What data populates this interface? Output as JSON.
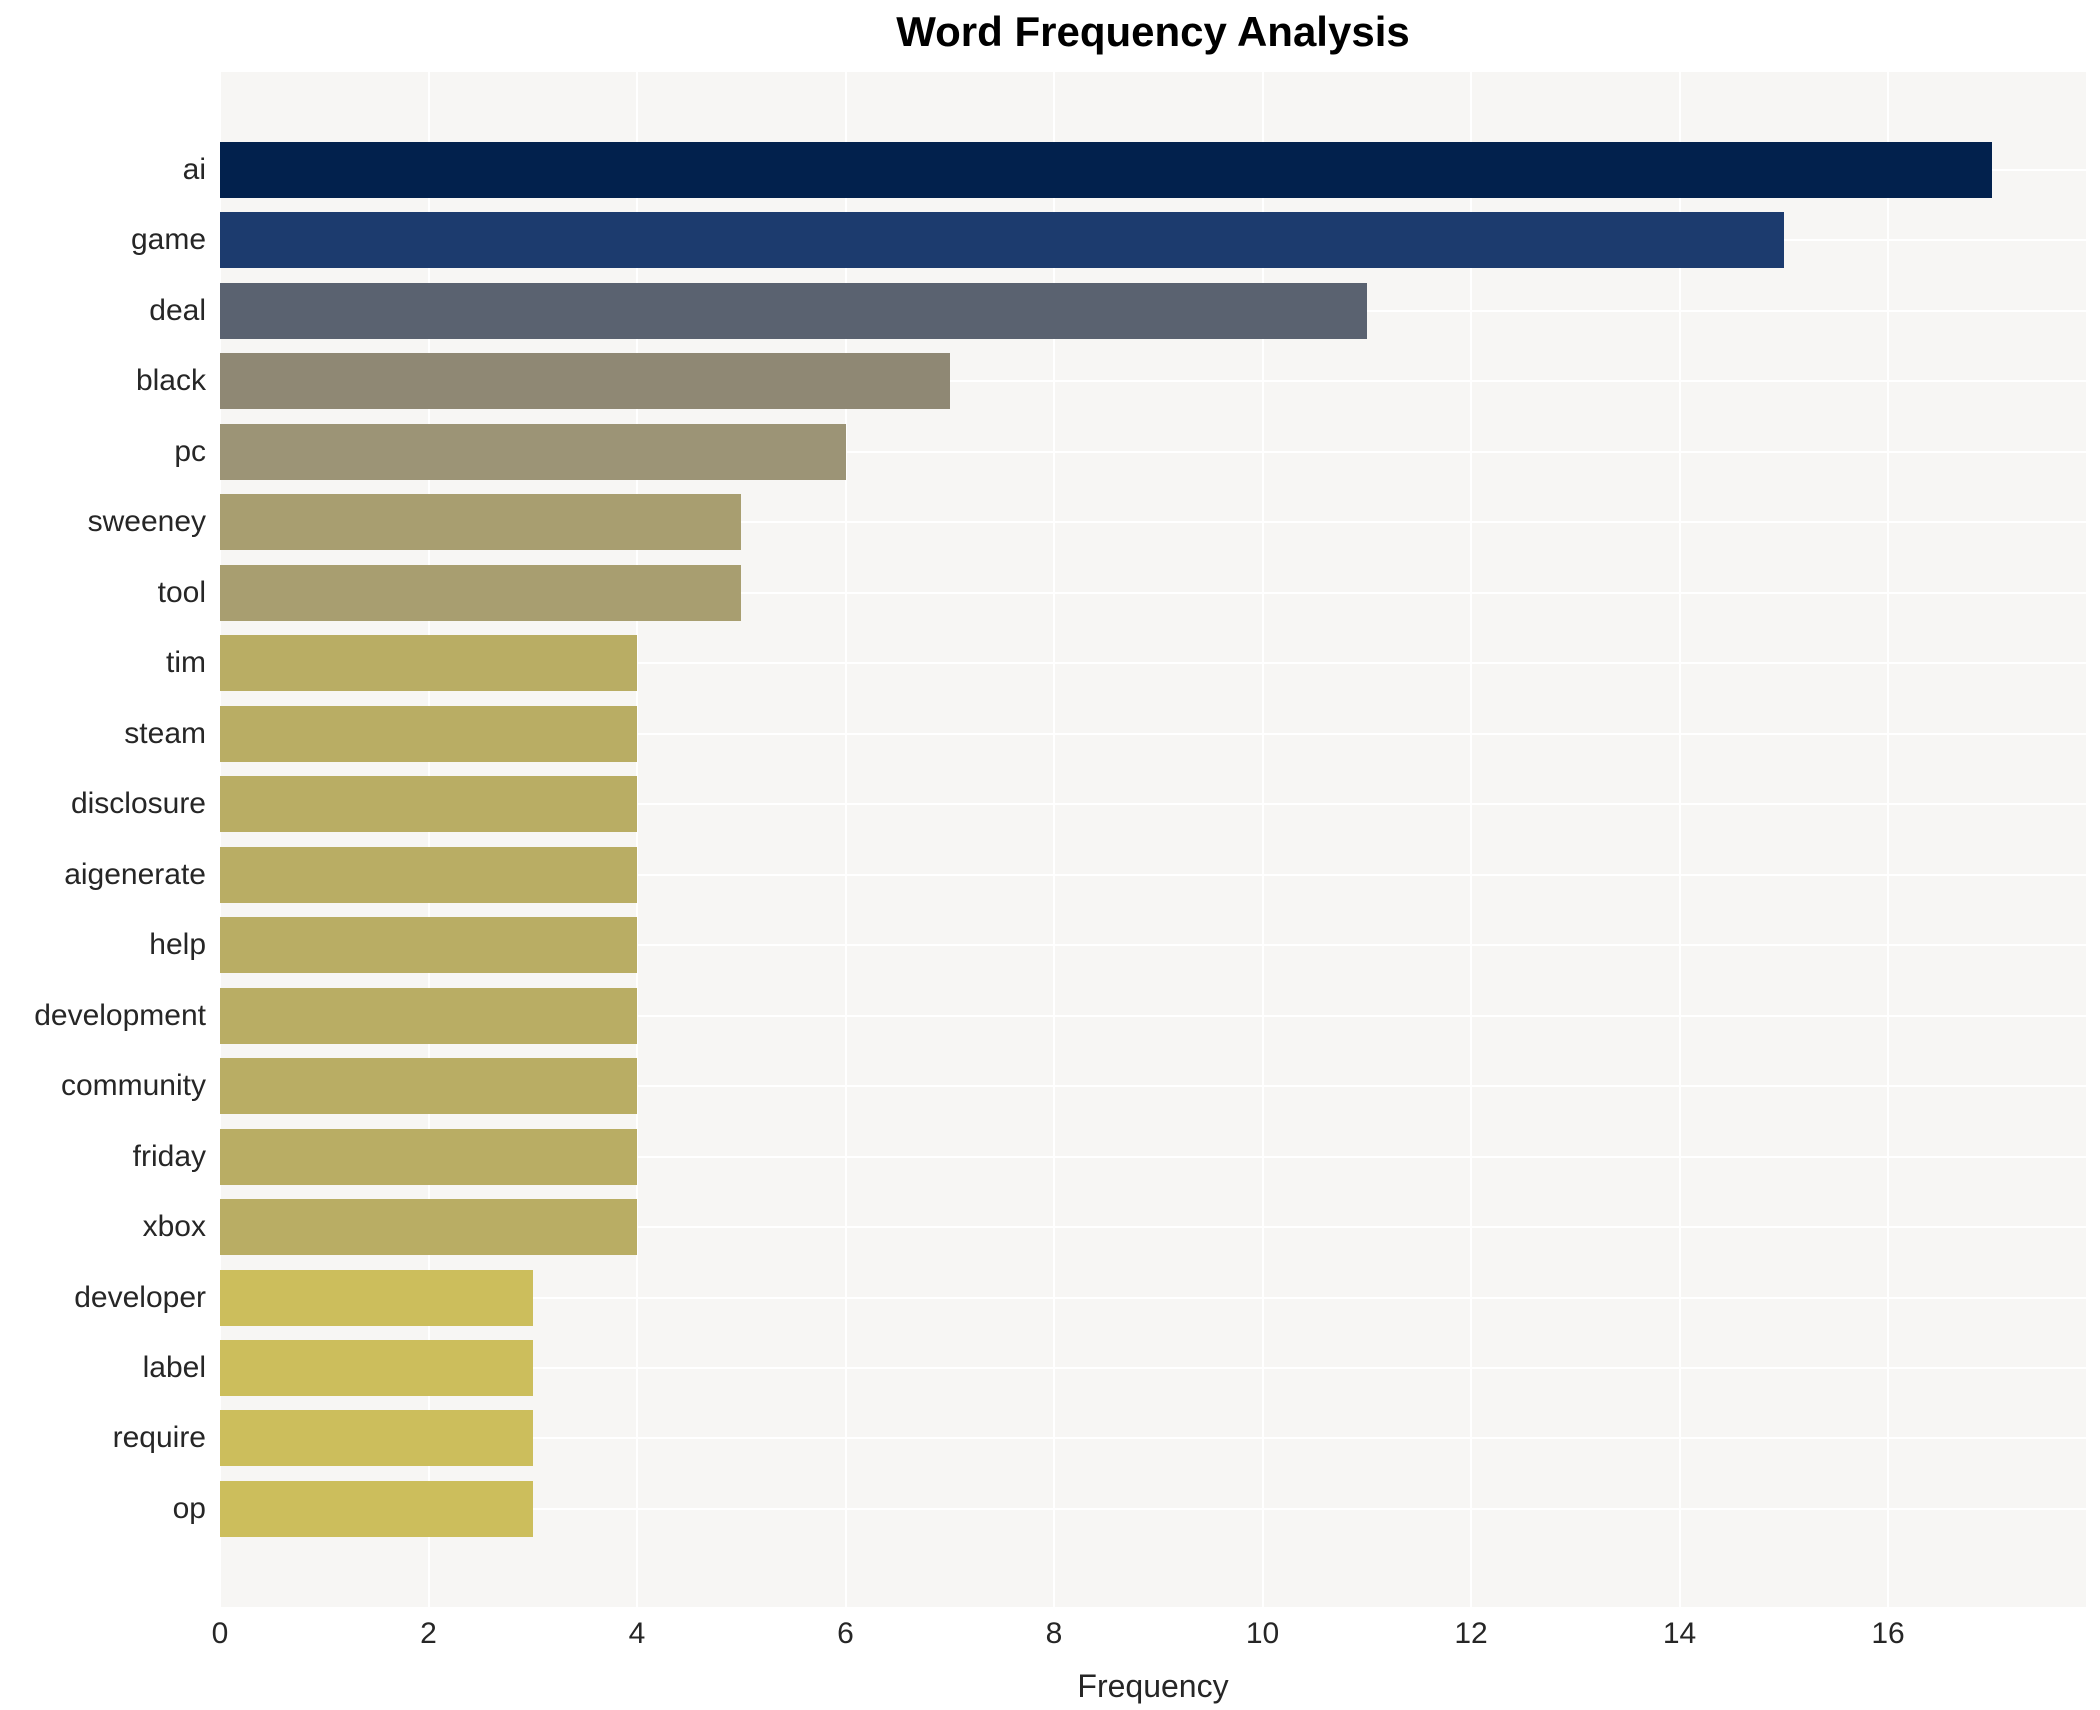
{
  "chart_data": {
    "type": "bar",
    "orientation": "horizontal",
    "title": "Word Frequency Analysis",
    "xlabel": "Frequency",
    "ylabel": "",
    "categories": [
      "ai",
      "game",
      "deal",
      "black",
      "pc",
      "sweeney",
      "tool",
      "tim",
      "steam",
      "disclosure",
      "aigenerate",
      "help",
      "development",
      "community",
      "friday",
      "xbox",
      "developer",
      "label",
      "require",
      "op"
    ],
    "values": [
      17,
      15,
      11,
      7,
      6,
      5,
      5,
      4,
      4,
      4,
      4,
      4,
      4,
      4,
      4,
      4,
      3,
      3,
      3,
      3
    ],
    "bar_colors": [
      "#02214d",
      "#1c3b6e",
      "#5a6270",
      "#8f8874",
      "#9c9476",
      "#a89e70",
      "#a89e70",
      "#b9ad64",
      "#b9ad64",
      "#b9ad64",
      "#b9ad64",
      "#b9ad64",
      "#b9ad64",
      "#b9ad64",
      "#b9ad64",
      "#b9ad64",
      "#ccbe5c",
      "#ccbe5c",
      "#ccbe5c",
      "#ccbe5c"
    ],
    "xticks": [
      0,
      2,
      4,
      6,
      8,
      10,
      12,
      14,
      16
    ],
    "xlim": [
      0,
      17.9
    ],
    "grid": true,
    "legend": "none",
    "plot_bg_color": "#f7f6f4",
    "grid_color": "#ffffff",
    "tick_text_color": "#262626",
    "title_color": "#000000"
  }
}
